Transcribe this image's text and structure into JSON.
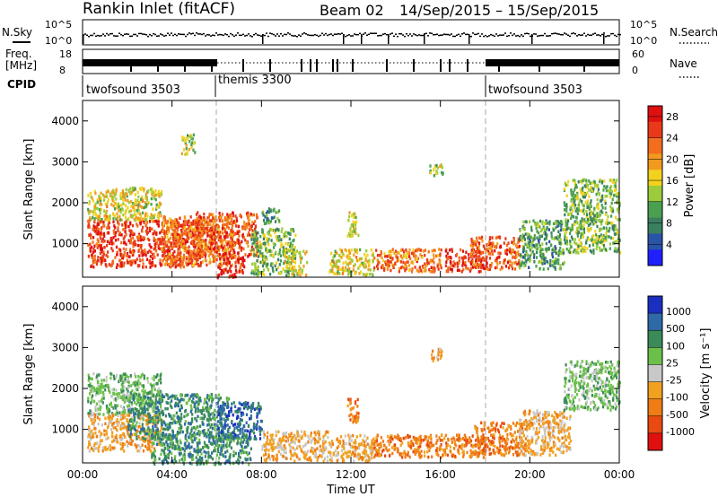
{
  "header": {
    "title": "Rankin Inlet (fitACF)",
    "beam": "Beam 02",
    "date_range": "14/Sep/2015 – 15/Sep/2015"
  },
  "top_panels": {
    "nsky_label": "N.Sky",
    "nsky_ticks": [
      "10^5",
      "10^0"
    ],
    "nsearch_label": "N.Search",
    "nsearch_ticks": [
      "10^5",
      "10^0"
    ],
    "freq_label": "Freq.",
    "freq_unit": "[MHz]",
    "freq_ticks": [
      "18",
      "8"
    ],
    "nave_label": "Nave",
    "nave_ticks": [
      "60",
      "0"
    ],
    "cpid_label": "CPID",
    "cpid_segments": [
      {
        "name": "twofsound 3503",
        "start_h": 0,
        "end_h": 6
      },
      {
        "name": "themis 3300",
        "start_h": 6,
        "end_h": 18
      },
      {
        "name": "twofsound 3503",
        "start_h": 18,
        "end_h": 24
      }
    ]
  },
  "chart_data": [
    {
      "type": "heatmap",
      "title": "",
      "xlabel": "Time UT",
      "ylabel": "Slant Range [km]",
      "xlim": [
        0,
        24
      ],
      "ylim": [
        180,
        4500
      ],
      "x_ticks": [
        "00:00",
        "04:00",
        "08:00",
        "12:00",
        "16:00",
        "20:00",
        "00:00"
      ],
      "y_ticks": [
        1000,
        2000,
        3000,
        4000
      ],
      "colorbar": {
        "label": "Power [dB]",
        "ticks": [
          4,
          8,
          12,
          16,
          20,
          24,
          28
        ],
        "range": [
          0,
          30
        ],
        "colors": [
          "#2020ff",
          "#2a54a8",
          "#3a8060",
          "#4aa050",
          "#9ccc3c",
          "#f2d21e",
          "#f29a1e",
          "#f26e1e",
          "#e83a18",
          "#e01010"
        ]
      },
      "scatter_regions": [
        {
          "t": [
            0.2,
            5.3
          ],
          "r": [
            450,
            1600
          ],
          "level": 26
        },
        {
          "t": [
            0.2,
            3.5
          ],
          "r": [
            1600,
            2400
          ],
          "level": 16
        },
        {
          "t": [
            3.5,
            6.8
          ],
          "r": [
            500,
            1700
          ],
          "level": 22
        },
        {
          "t": [
            6.0,
            7.2
          ],
          "r": [
            180,
            700
          ],
          "level": 28
        },
        {
          "t": [
            5.0,
            7.8
          ],
          "r": [
            700,
            1800
          ],
          "level": 24
        },
        {
          "t": [
            7.5,
            9.5
          ],
          "r": [
            250,
            1400
          ],
          "level": 12
        },
        {
          "t": [
            8.0,
            8.8
          ],
          "r": [
            1500,
            1900
          ],
          "level": 10
        },
        {
          "t": [
            9.0,
            10.0
          ],
          "r": [
            250,
            900
          ],
          "level": 16
        },
        {
          "t": [
            11.0,
            13.0
          ],
          "r": [
            250,
            900
          ],
          "level": 16
        },
        {
          "t": [
            11.8,
            12.3
          ],
          "r": [
            1200,
            1800
          ],
          "level": 14
        },
        {
          "t": [
            13.0,
            16.0
          ],
          "r": [
            350,
            900
          ],
          "level": 22
        },
        {
          "t": [
            16.2,
            17.8
          ],
          "r": [
            350,
            900
          ],
          "level": 26
        },
        {
          "t": [
            17.3,
            19.5
          ],
          "r": [
            400,
            1200
          ],
          "level": 24
        },
        {
          "t": [
            19.5,
            21.5
          ],
          "r": [
            400,
            1600
          ],
          "level": 10
        },
        {
          "t": [
            21.5,
            24.0
          ],
          "r": [
            800,
            2600
          ],
          "level": 12
        },
        {
          "t": [
            15.5,
            16.1
          ],
          "r": [
            2700,
            3000
          ],
          "level": 14
        },
        {
          "t": [
            4.4,
            5.0
          ],
          "r": [
            3200,
            3700
          ],
          "level": 14
        }
      ]
    },
    {
      "type": "heatmap",
      "title": "",
      "xlabel": "Time UT",
      "ylabel": "Slant Range [km]",
      "xlim": [
        0,
        24
      ],
      "ylim": [
        180,
        4500
      ],
      "x_ticks": [
        "00:00",
        "04:00",
        "08:00",
        "12:00",
        "16:00",
        "20:00",
        "00:00"
      ],
      "y_ticks": [
        1000,
        2000,
        3000,
        4000
      ],
      "colorbar": {
        "label": "Velocity [m s⁻¹]",
        "ticks": [
          1000,
          500,
          100,
          25,
          -25,
          -100,
          -500,
          -1000
        ],
        "colors": [
          "#1a2fc0",
          "#2e6aa8",
          "#3a8a5a",
          "#6cc04a",
          "#c8c8c8",
          "#f2a020",
          "#ef7c14",
          "#e84a12",
          "#e01010"
        ]
      },
      "scatter_regions": [
        {
          "t": [
            0.2,
            3.5
          ],
          "r": [
            1400,
            2400
          ],
          "level": 25
        },
        {
          "t": [
            0.2,
            3.5
          ],
          "r": [
            500,
            1400
          ],
          "level": -100
        },
        {
          "t": [
            2.0,
            6.5
          ],
          "r": [
            800,
            1900
          ],
          "level": 100
        },
        {
          "t": [
            3.0,
            7.5
          ],
          "r": [
            180,
            900
          ],
          "level": 100
        },
        {
          "t": [
            6.0,
            8.0
          ],
          "r": [
            800,
            1700
          ],
          "level": 500
        },
        {
          "t": [
            8.0,
            11.0
          ],
          "r": [
            250,
            1000
          ],
          "level": -100
        },
        {
          "t": [
            11.0,
            13.0
          ],
          "r": [
            250,
            900
          ],
          "level": -100
        },
        {
          "t": [
            11.8,
            12.3
          ],
          "r": [
            1200,
            1800
          ],
          "level": -500
        },
        {
          "t": [
            13.0,
            18.0
          ],
          "r": [
            350,
            900
          ],
          "level": -500
        },
        {
          "t": [
            17.5,
            19.8
          ],
          "r": [
            400,
            1200
          ],
          "level": -500
        },
        {
          "t": [
            19.5,
            21.8
          ],
          "r": [
            400,
            1500
          ],
          "level": -100
        },
        {
          "t": [
            21.5,
            24.0
          ],
          "r": [
            1500,
            2700
          ],
          "level": 25
        },
        {
          "t": [
            15.5,
            16.1
          ],
          "r": [
            2700,
            3000
          ],
          "level": -100
        }
      ]
    }
  ]
}
